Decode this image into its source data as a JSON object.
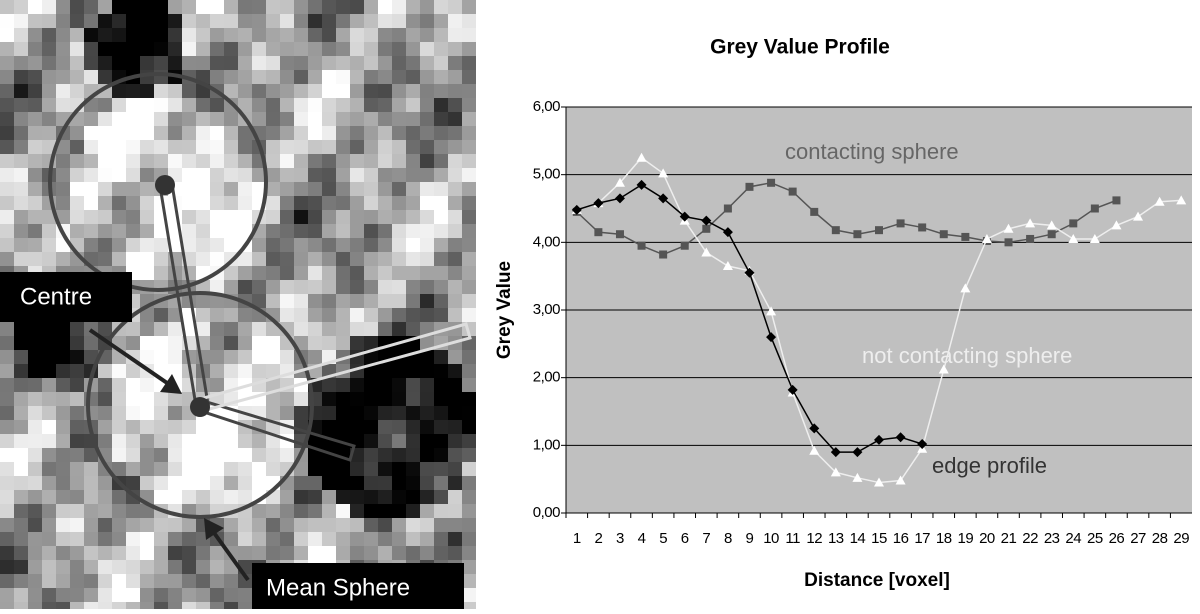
{
  "image": {
    "labels": [
      "Centre",
      "Mean Sphere"
    ]
  },
  "chart_data": {
    "type": "line",
    "title": "Grey Value Profile",
    "x_label": "Distance [voxel]",
    "y_label": "Grey Value",
    "categories": [
      "1",
      "2",
      "3",
      "4",
      "5",
      "6",
      "7",
      "8",
      "9",
      "10",
      "11",
      "12",
      "13",
      "14",
      "15",
      "16",
      "17",
      "18",
      "19",
      "20",
      "21",
      "22",
      "23",
      "24",
      "25",
      "26",
      "27",
      "28",
      "29"
    ],
    "series": [
      {
        "name": "contacting sphere",
        "color": "#555555",
        "marker": "square",
        "values": [
          4.45,
          4.15,
          4.12,
          3.95,
          3.82,
          3.95,
          4.2,
          4.5,
          4.82,
          4.88,
          4.75,
          4.45,
          4.18,
          4.12,
          4.18,
          4.28,
          4.22,
          4.12,
          4.08,
          4.02,
          4.0,
          4.05,
          4.12,
          4.28,
          4.5,
          4.62,
          null,
          null,
          null
        ]
      },
      {
        "name": "not contacting sphere",
        "color": "#ffffff",
        "marker": "triangle",
        "values": [
          4.48,
          4.58,
          4.88,
          5.25,
          5.02,
          4.32,
          3.85,
          3.65,
          3.58,
          2.98,
          1.78,
          0.92,
          0.6,
          0.52,
          0.45,
          0.48,
          0.95,
          2.12,
          3.32,
          4.05,
          4.2,
          4.28,
          4.25,
          4.05,
          4.05,
          4.25,
          4.38,
          4.6,
          4.62
        ]
      },
      {
        "name": "edge profile",
        "color": "#000000",
        "marker": "diamond",
        "values": [
          4.48,
          4.58,
          4.65,
          4.85,
          4.65,
          4.38,
          4.32,
          4.15,
          3.55,
          2.6,
          1.82,
          1.25,
          0.9,
          0.9,
          1.08,
          1.12,
          1.02,
          null,
          null,
          null,
          null,
          null,
          null,
          null,
          null,
          null,
          null,
          null,
          null
        ]
      }
    ],
    "ylim": [
      0,
      6
    ],
    "yticks": [
      {
        "value": 0,
        "label": "0,00"
      },
      {
        "value": 1,
        "label": "1,00"
      },
      {
        "value": 2,
        "label": "2,00"
      },
      {
        "value": 3,
        "label": "3,00"
      },
      {
        "value": 4,
        "label": "4,00"
      },
      {
        "value": 5,
        "label": "5,00"
      },
      {
        "value": 6,
        "label": "6,00"
      }
    ],
    "grid": true,
    "plot_background": "#c0c0c0"
  }
}
